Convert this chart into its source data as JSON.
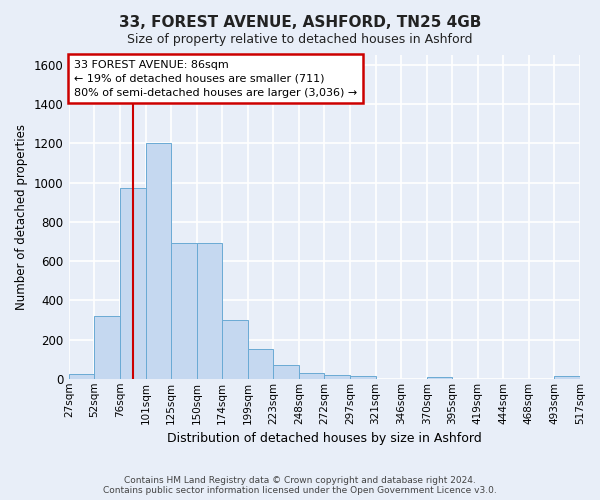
{
  "title1": "33, FOREST AVENUE, ASHFORD, TN25 4GB",
  "title2": "Size of property relative to detached houses in Ashford",
  "xlabel": "Distribution of detached houses by size in Ashford",
  "ylabel": "Number of detached properties",
  "footnote": "Contains HM Land Registry data © Crown copyright and database right 2024.\nContains public sector information licensed under the Open Government Licence v3.0.",
  "bar_values": [
    25,
    320,
    970,
    1200,
    690,
    690,
    300,
    150,
    70,
    30,
    20,
    15,
    0,
    0,
    10,
    0,
    0,
    0,
    0,
    15
  ],
  "bin_labels": [
    "27sqm",
    "52sqm",
    "76sqm",
    "101sqm",
    "125sqm",
    "150sqm",
    "174sqm",
    "199sqm",
    "223sqm",
    "248sqm",
    "272sqm",
    "297sqm",
    "321sqm",
    "346sqm",
    "370sqm",
    "395sqm",
    "419sqm",
    "444sqm",
    "468sqm",
    "493sqm",
    "517sqm"
  ],
  "bar_color": "#c5d8f0",
  "bar_edge_color": "#6aaad4",
  "background_color": "#e8eef8",
  "grid_color": "#ffffff",
  "annotation_box_text": "33 FOREST AVENUE: 86sqm\n← 19% of detached houses are smaller (711)\n80% of semi-detached houses are larger (3,036) →",
  "vline_color": "#cc0000",
  "vline_x_index": 2.5,
  "ylim": [
    0,
    1650
  ],
  "yticks": [
    0,
    200,
    400,
    600,
    800,
    1000,
    1200,
    1400,
    1600
  ]
}
